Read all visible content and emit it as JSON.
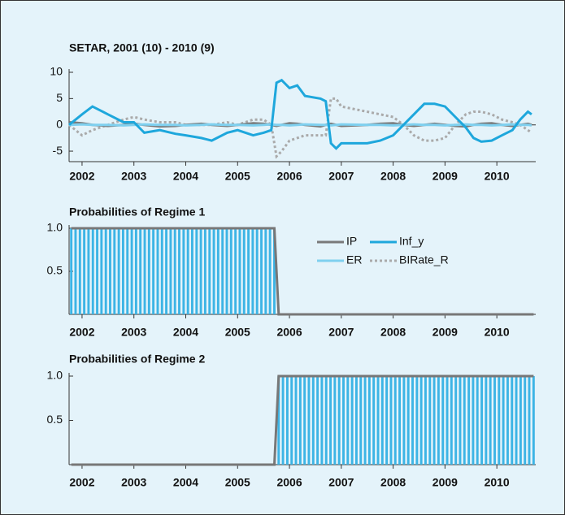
{
  "chart_data": [
    {
      "type": "line",
      "title": "SETAR, 2001 (10) - 2010 (9)",
      "x": [
        2001.75,
        2002.0,
        2002.2,
        2002.5,
        2002.8,
        2003.0,
        2003.2,
        2003.5,
        2003.8,
        2004.0,
        2004.3,
        2004.5,
        2004.8,
        2005.0,
        2005.3,
        2005.5,
        2005.65,
        2005.75,
        2005.85,
        2006.0,
        2006.15,
        2006.3,
        2006.6,
        2006.7,
        2006.8,
        2006.9,
        2007.0,
        2007.5,
        2007.75,
        2008.0,
        2008.2,
        2008.4,
        2008.6,
        2008.8,
        2009.0,
        2009.2,
        2009.4,
        2009.55,
        2009.7,
        2009.9,
        2010.1,
        2010.3,
        2010.45,
        2010.6,
        2010.67
      ],
      "series": [
        {
          "name": "IP",
          "color": "#7a7a7a",
          "values": [
            0.5,
            0.3,
            0,
            -0.2,
            0,
            0.2,
            0,
            -0.3,
            -0.2,
            0,
            0.2,
            0,
            -0.2,
            0,
            0.3,
            0.2,
            0,
            -0.2,
            0,
            0.3,
            0.2,
            0,
            -0.3,
            0,
            0.2,
            0,
            -0.2,
            0,
            0.2,
            0.3,
            0,
            -0.2,
            0,
            0.2,
            0,
            -0.2,
            -0.3,
            0,
            0.2,
            0.3,
            0,
            -0.2,
            0,
            0.2,
            0
          ]
        },
        {
          "name": "Inf_y",
          "color": "#1ea7dc",
          "values": [
            0,
            2,
            3.5,
            2,
            0.5,
            0.5,
            -1.5,
            -1,
            -1.7,
            -2,
            -2.5,
            -3,
            -1.5,
            -1,
            -2,
            -1.5,
            -1,
            8,
            8.5,
            7,
            7.5,
            5.5,
            5,
            4.5,
            -3.5,
            -4.5,
            -3.5,
            -3.5,
            -3,
            -2,
            0,
            2,
            4,
            4,
            3.5,
            1.5,
            -0.5,
            -2.5,
            -3.2,
            -3,
            -2,
            -1,
            1,
            2.5,
            2
          ]
        },
        {
          "name": "ER",
          "color": "#7fd0ef",
          "values": [
            0,
            0.1,
            0,
            0,
            -0.1,
            0,
            0.1,
            0,
            0,
            -0.1,
            0,
            0.1,
            0,
            0,
            -0.1,
            0,
            0.1,
            0,
            0,
            -0.1,
            0,
            0.1,
            0,
            0,
            -0.1,
            0,
            0.1,
            0,
            0,
            -0.1,
            0,
            0.1,
            0,
            0,
            -0.1,
            0,
            0.1,
            0,
            0,
            -0.1,
            0,
            0.1,
            0,
            0,
            -0.1
          ]
        },
        {
          "name": "BIRate_R",
          "color": "#aaaaaa",
          "style": "dotted",
          "values": [
            0,
            -2,
            -1,
            0,
            1,
            1.5,
            1,
            0.5,
            0.5,
            0,
            0,
            0,
            0.5,
            0,
            1,
            1,
            0,
            -6,
            -5,
            -3,
            -2.5,
            -2,
            -2,
            -2,
            5,
            5,
            3.5,
            2.5,
            2,
            1.5,
            0,
            -2,
            -3,
            -3,
            -2.5,
            0,
            2,
            2.5,
            2.5,
            2,
            1,
            0.5,
            0,
            -1,
            -1.5
          ]
        }
      ],
      "xlim": [
        2001.75,
        2010.75
      ],
      "xticks": [
        2002,
        2003,
        2004,
        2005,
        2006,
        2007,
        2008,
        2009,
        2010
      ],
      "ylim": [
        -7,
        10
      ],
      "yticks": [
        -5,
        0,
        5,
        10
      ]
    },
    {
      "type": "bar",
      "title": "Probabilities of Regime 1",
      "color": "#3cb4e5",
      "line_color": "#777777",
      "x": [
        2001.75,
        2001.833,
        2001.917,
        2002.0,
        2002.083,
        2002.167,
        2002.25,
        2002.333,
        2002.417,
        2002.5,
        2002.583,
        2002.667,
        2002.75,
        2002.833,
        2002.917,
        2003.0,
        2003.083,
        2003.167,
        2003.25,
        2003.333,
        2003.417,
        2003.5,
        2003.583,
        2003.667,
        2003.75,
        2003.833,
        2003.917,
        2004.0,
        2004.083,
        2004.167,
        2004.25,
        2004.333,
        2004.417,
        2004.5,
        2004.583,
        2004.667,
        2004.75,
        2004.833,
        2004.917,
        2005.0,
        2005.083,
        2005.167,
        2005.25,
        2005.333,
        2005.417,
        2005.5,
        2005.583,
        2005.667,
        2005.75,
        2005.833,
        2005.917,
        2006.0,
        2006.083,
        2006.167,
        2006.25,
        2006.333,
        2006.417,
        2006.5,
        2006.583,
        2006.667,
        2006.75,
        2006.833,
        2006.917,
        2007.0,
        2007.083,
        2007.167,
        2007.25,
        2007.333,
        2007.417,
        2007.5,
        2007.583,
        2007.667,
        2007.75,
        2007.833,
        2007.917,
        2008.0,
        2008.083,
        2008.167,
        2008.25,
        2008.333,
        2008.417,
        2008.5,
        2008.583,
        2008.667,
        2008.75,
        2008.833,
        2008.917,
        2009.0,
        2009.083,
        2009.167,
        2009.25,
        2009.333,
        2009.417,
        2009.5,
        2009.583,
        2009.667,
        2009.75,
        2009.833,
        2009.917,
        2010.0,
        2010.083,
        2010.167,
        2010.25,
        2010.333,
        2010.417,
        2010.5,
        2010.583,
        2010.667
      ],
      "values": [
        1,
        1,
        1,
        1,
        1,
        1,
        1,
        1,
        1,
        1,
        1,
        1,
        1,
        1,
        1,
        1,
        1,
        1,
        1,
        1,
        1,
        1,
        1,
        1,
        1,
        1,
        1,
        1,
        1,
        1,
        1,
        1,
        1,
        1,
        1,
        1,
        1,
        1,
        1,
        1,
        1,
        1,
        1,
        1,
        1,
        1,
        1,
        1,
        0,
        0,
        0,
        0,
        0,
        0,
        0,
        0,
        0,
        0,
        0,
        0,
        0,
        0,
        0,
        0,
        0,
        0,
        0,
        0,
        0,
        0,
        0,
        0,
        0,
        0,
        0,
        0,
        0,
        0,
        0,
        0,
        0,
        0,
        0,
        0,
        0,
        0,
        0,
        0,
        0,
        0,
        0,
        0,
        0,
        0,
        0,
        0,
        0,
        0,
        0,
        0,
        0,
        0,
        0,
        0,
        0,
        0,
        0,
        0
      ],
      "xlim": [
        2001.75,
        2010.75
      ],
      "xticks": [
        2002,
        2003,
        2004,
        2005,
        2006,
        2007,
        2008,
        2009,
        2010
      ],
      "ylim": [
        0,
        1
      ],
      "yticks": [
        0.5,
        {
          "value": 1,
          "label": "1.0"
        }
      ]
    },
    {
      "type": "bar",
      "title": "Probabilities of Regime 2",
      "color": "#3cb4e5",
      "line_color": "#777777",
      "x": [
        2001.75,
        2001.833,
        2001.917,
        2002.0,
        2002.083,
        2002.167,
        2002.25,
        2002.333,
        2002.417,
        2002.5,
        2002.583,
        2002.667,
        2002.75,
        2002.833,
        2002.917,
        2003.0,
        2003.083,
        2003.167,
        2003.25,
        2003.333,
        2003.417,
        2003.5,
        2003.583,
        2003.667,
        2003.75,
        2003.833,
        2003.917,
        2004.0,
        2004.083,
        2004.167,
        2004.25,
        2004.333,
        2004.417,
        2004.5,
        2004.583,
        2004.667,
        2004.75,
        2004.833,
        2004.917,
        2005.0,
        2005.083,
        2005.167,
        2005.25,
        2005.333,
        2005.417,
        2005.5,
        2005.583,
        2005.667,
        2005.75,
        2005.833,
        2005.917,
        2006.0,
        2006.083,
        2006.167,
        2006.25,
        2006.333,
        2006.417,
        2006.5,
        2006.583,
        2006.667,
        2006.75,
        2006.833,
        2006.917,
        2007.0,
        2007.083,
        2007.167,
        2007.25,
        2007.333,
        2007.417,
        2007.5,
        2007.583,
        2007.667,
        2007.75,
        2007.833,
        2007.917,
        2008.0,
        2008.083,
        2008.167,
        2008.25,
        2008.333,
        2008.417,
        2008.5,
        2008.583,
        2008.667,
        2008.75,
        2008.833,
        2008.917,
        2009.0,
        2009.083,
        2009.167,
        2009.25,
        2009.333,
        2009.417,
        2009.5,
        2009.583,
        2009.667,
        2009.75,
        2009.833,
        2009.917,
        2010.0,
        2010.083,
        2010.167,
        2010.25,
        2010.333,
        2010.417,
        2010.5,
        2010.583,
        2010.667
      ],
      "values": [
        0,
        0,
        0,
        0,
        0,
        0,
        0,
        0,
        0,
        0,
        0,
        0,
        0,
        0,
        0,
        0,
        0,
        0,
        0,
        0,
        0,
        0,
        0,
        0,
        0,
        0,
        0,
        0,
        0,
        0,
        0,
        0,
        0,
        0,
        0,
        0,
        0,
        0,
        0,
        0,
        0,
        0,
        0,
        0,
        0,
        0,
        0,
        0,
        1,
        1,
        1,
        1,
        1,
        1,
        1,
        1,
        1,
        1,
        1,
        1,
        1,
        1,
        1,
        1,
        1,
        1,
        1,
        1,
        1,
        1,
        1,
        1,
        1,
        1,
        1,
        1,
        1,
        1,
        1,
        1,
        1,
        1,
        1,
        1,
        1,
        1,
        1,
        1,
        1,
        1,
        1,
        1,
        1,
        1,
        1,
        1,
        1,
        1,
        1,
        1,
        1,
        1,
        1,
        1,
        1,
        1,
        1,
        1
      ],
      "xlim": [
        2001.75,
        2010.75
      ],
      "xticks": [
        2002,
        2003,
        2004,
        2005,
        2006,
        2007,
        2008,
        2009,
        2010
      ],
      "ylim": [
        0,
        1
      ],
      "yticks": [
        0.5,
        {
          "value": 1,
          "label": "1.0"
        }
      ]
    }
  ]
}
